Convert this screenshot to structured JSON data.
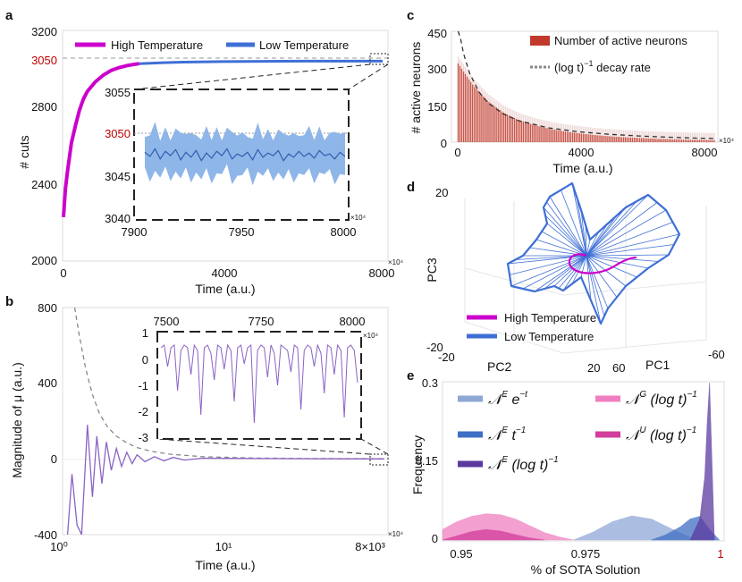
{
  "figure": {
    "panel_labels": [
      "a",
      "b",
      "c",
      "d",
      "e"
    ]
  },
  "chart_data": [
    {
      "panel": "a",
      "type": "line",
      "title": "",
      "xlabel": "Time (a.u.)",
      "ylabel": "# cuts",
      "x_multiplier": "×10⁴",
      "xlim": [
        0,
        8000
      ],
      "ylim": [
        2000,
        3200
      ],
      "xticks": [
        "0",
        "4000",
        "8000"
      ],
      "yticks": [
        "2000",
        "2400",
        "2800",
        "3200"
      ],
      "reference_line": {
        "value": 3050,
        "label": "3050",
        "color": "#c00000"
      },
      "legend": [
        {
          "name": "High Temperature",
          "color": "#cc00cc"
        },
        {
          "name": "Low Temperature",
          "color": "#3f6fd6"
        }
      ],
      "series": [
        {
          "name": "High Temperature",
          "color": "#cc00cc",
          "x": [
            0,
            50,
            100,
            200,
            300,
            400,
            500,
            600,
            800,
            1000,
            1200,
            1400,
            1600,
            1800,
            1900
          ],
          "y": [
            2230,
            2380,
            2470,
            2620,
            2710,
            2790,
            2850,
            2890,
            2940,
            2975,
            3000,
            3015,
            3025,
            3032,
            3035
          ]
        },
        {
          "name": "Low Temperature",
          "color": "#3f6fd6",
          "x": [
            1900,
            2500,
            3000,
            4000,
            5000,
            6000,
            7000,
            8000
          ],
          "y": [
            3035,
            3040,
            3043,
            3046,
            3047,
            3048,
            3048,
            3048
          ]
        }
      ],
      "inset": {
        "xlim": [
          7900,
          8000
        ],
        "ylim": [
          3040,
          3055
        ],
        "xticks": [
          "7900",
          "7950",
          "8000"
        ],
        "yticks": [
          "3040",
          "3045",
          "3050",
          "3055"
        ],
        "reference_value": 3050,
        "x_multiplier": "×10⁴",
        "mean": [
          3048,
          3047.5,
          3048.4,
          3047.2,
          3048.1,
          3047.6,
          3048.3,
          3047.1,
          3048.0,
          3047.4,
          3048.2,
          3047.0,
          3047.9,
          3047.3,
          3048.1,
          3047.6,
          3048.4,
          3047.2,
          3047.8,
          3047.5,
          3048.0,
          3047.1,
          3048.3,
          3047.4,
          3047.9,
          3047.6,
          3048.2,
          3047.0,
          3047.8,
          3047.4,
          3048.1,
          3047.5,
          3047.9,
          3047.3,
          3048.2,
          3047.6,
          3047.8,
          3047.2,
          3048.0,
          3047.5
        ],
        "band_halfwidth": 1.8
      }
    },
    {
      "panel": "b",
      "type": "line",
      "xlabel": "Time (a.u.)",
      "ylabel": "Magnitude of μ (a.u.)",
      "x_scale": "log",
      "xlim": [
        1,
        8000
      ],
      "ylim": [
        -400,
        800
      ],
      "xticks": [
        "10⁰",
        "10¹",
        "8×10³"
      ],
      "yticks": [
        "-400",
        "0",
        "400",
        "800"
      ],
      "x_multiplier": "×10⁴",
      "series": [
        {
          "name": "μ",
          "color": "#8a63c4",
          "x": [
            1.15,
            1.3,
            1.5,
            1.7,
            2.0,
            2.3,
            2.6,
            3.0,
            3.4,
            3.9,
            4.5,
            5.2,
            6.0,
            7.0,
            8.0,
            10,
            13,
            17,
            22,
            30,
            50,
            100,
            300,
            1000,
            8000
          ],
          "y": [
            -400,
            -80,
            -350,
            -400,
            180,
            -200,
            120,
            -130,
            90,
            -60,
            55,
            -40,
            35,
            -25,
            22,
            -15,
            12,
            -10,
            8,
            -6,
            4,
            3,
            2,
            1,
            0
          ]
        },
        {
          "name": "envelope",
          "color": "#888888",
          "style": "dashed",
          "x": [
            1.4,
            1.6,
            1.9,
            2.3,
            2.8,
            3.5,
            4.5,
            6,
            8,
            12,
            20,
            50,
            200,
            1000,
            8000
          ],
          "y": [
            800,
            650,
            480,
            340,
            240,
            170,
            120,
            85,
            60,
            40,
            25,
            12,
            5,
            2,
            1
          ]
        }
      ],
      "inset": {
        "xlim": [
          7500,
          8000
        ],
        "ylim": [
          -3,
          1
        ],
        "xticks": [
          "7500",
          "7750",
          "8000"
        ],
        "yticks": [
          "1",
          "0",
          "-1",
          "-2",
          "-3"
        ],
        "x_multiplier": "×10⁴",
        "values": [
          0.4,
          0.5,
          -0.3,
          0.4,
          0.5,
          -1.2,
          0.3,
          0.5,
          0.4,
          -0.6,
          0.5,
          0.3,
          -2.1,
          0.4,
          0.5,
          0.2,
          -0.8,
          0.5,
          0.4,
          -0.4,
          0.5,
          0.3,
          -1.6,
          0.4,
          0.5,
          -0.2,
          0.4,
          0.5,
          -2.4,
          0.3,
          0.5,
          0.4,
          -0.7,
          0.5,
          0.2,
          -1.0,
          0.5,
          0.4,
          0.3,
          -0.5,
          0.5,
          0.4,
          -1.9,
          0.3,
          0.5,
          0.4,
          -0.3,
          0.5,
          0.2,
          -1.3,
          0.5,
          0.4,
          -0.6,
          0.5,
          0.3,
          -2.2,
          0.4,
          0.5,
          0.3,
          -0.9
        ]
      }
    },
    {
      "panel": "c",
      "type": "bar",
      "xlabel": "Time (a.u.)",
      "ylabel": "# active neurons",
      "xlim": [
        -200,
        8600
      ],
      "ylim": [
        0,
        450
      ],
      "xticks": [
        "0",
        "4000",
        "8000"
      ],
      "yticks": [
        "0",
        "150",
        "300",
        "450"
      ],
      "x_multiplier": "×10⁴",
      "legend": [
        {
          "name": "Number of active neurons",
          "color": "#c0392b"
        },
        {
          "name_prefix": "(log t)",
          "name_exp": "−1",
          "name_suffix": " decay rate",
          "color": "#888888"
        }
      ],
      "series": [
        {
          "name": "Number of active neurons",
          "color": "#c0392b",
          "x": [
            0,
            500,
            1000,
            1500,
            2000,
            2500,
            3000,
            3500,
            4000,
            4500,
            5000,
            5500,
            6000,
            6500,
            7000,
            7500,
            8000,
            8500
          ],
          "y": [
            320,
            230,
            165,
            120,
            90,
            70,
            55,
            44,
            36,
            29,
            24,
            20,
            17,
            14,
            12,
            10,
            9,
            8
          ]
        },
        {
          "name": "(log t)^-1 decay rate",
          "color": "#333333",
          "style": "dashed",
          "x": [
            20,
            100,
            200,
            400,
            700,
            1000,
            1500,
            2000,
            3000,
            4000,
            5000,
            6000,
            7000,
            8000,
            8500
          ],
          "y": [
            450,
            420,
            360,
            280,
            205,
            160,
            115,
            88,
            58,
            42,
            32,
            25,
            20,
            16,
            15
          ]
        }
      ]
    },
    {
      "panel": "d",
      "type": "scatter",
      "xlabel": "PC1",
      "ylabel": "PC3",
      "zlabel": "PC2",
      "tick_labels": [
        "20",
        "-20",
        "-20",
        "20",
        "60",
        "-60"
      ],
      "legend": [
        {
          "name": "High Temperature",
          "color": "#cc00cc"
        },
        {
          "name": "Low Temperature",
          "color": "#3f6fd6"
        }
      ]
    },
    {
      "panel": "e",
      "type": "area",
      "xlabel": "% of SOTA Solution",
      "ylabel": "Frequency",
      "xlim": [
        0.945,
        1.003
      ],
      "ylim": [
        0,
        0.3
      ],
      "xticks": [
        "0.95",
        "0.975",
        "1"
      ],
      "highlight_tick": "1",
      "yticks": [
        "0",
        "0.15",
        "0.3"
      ],
      "legend": [
        {
          "math": "𝒩",
          "sup": "E",
          "rest": " e",
          "rest_sup": "−t",
          "color": "#8fa8d6"
        },
        {
          "math": "𝒩",
          "sup": "G",
          "rest": " (log t)",
          "rest_sup": "−1",
          "color": "#ef7fbf"
        },
        {
          "math": "𝒩",
          "sup": "E",
          "rest": " t",
          "rest_sup": "−1",
          "color": "#3f6fc4"
        },
        {
          "math": "𝒩",
          "sup": "U",
          "rest": " (log t)",
          "rest_sup": "−1",
          "color": "#d23c9b"
        },
        {
          "math": "𝒩",
          "sup": "E",
          "rest": " (log t)",
          "rest_sup": "−1",
          "color": "#5b3aa0"
        }
      ],
      "series": [
        {
          "name": "N^G (log t)^-1",
          "color": "#ef7fbf",
          "x": [
            0.945,
            0.948,
            0.951,
            0.954,
            0.957,
            0.96,
            0.963,
            0.966,
            0.969,
            0.972
          ],
          "y": [
            0.02,
            0.035,
            0.045,
            0.05,
            0.048,
            0.04,
            0.027,
            0.014,
            0.006,
            0.0
          ]
        },
        {
          "name": "N^U (log t)^-1",
          "color": "#d23c9b",
          "x": [
            0.945,
            0.948,
            0.951,
            0.954,
            0.957,
            0.96,
            0.963,
            0.966
          ],
          "y": [
            0.0,
            0.008,
            0.016,
            0.02,
            0.017,
            0.01,
            0.004,
            0.0
          ]
        },
        {
          "name": "N^E e^-t",
          "color": "#8fa8d6",
          "x": [
            0.972,
            0.976,
            0.98,
            0.984,
            0.988,
            0.992,
            0.996
          ],
          "y": [
            0.0,
            0.015,
            0.035,
            0.046,
            0.04,
            0.022,
            0.005
          ]
        },
        {
          "name": "N^E t^-1",
          "color": "#3f6fc4",
          "x": [
            0.988,
            0.991,
            0.994,
            0.996,
            0.998,
            1.0,
            1.002
          ],
          "y": [
            0.0,
            0.01,
            0.025,
            0.04,
            0.045,
            0.02,
            0.0
          ]
        },
        {
          "name": "N^E (log t)^-1",
          "color": "#5b3aa0",
          "x": [
            0.996,
            0.998,
            0.999,
            0.9995,
            1.0,
            1.001
          ],
          "y": [
            0.0,
            0.04,
            0.12,
            0.22,
            0.3,
            0.0
          ]
        }
      ]
    }
  ]
}
